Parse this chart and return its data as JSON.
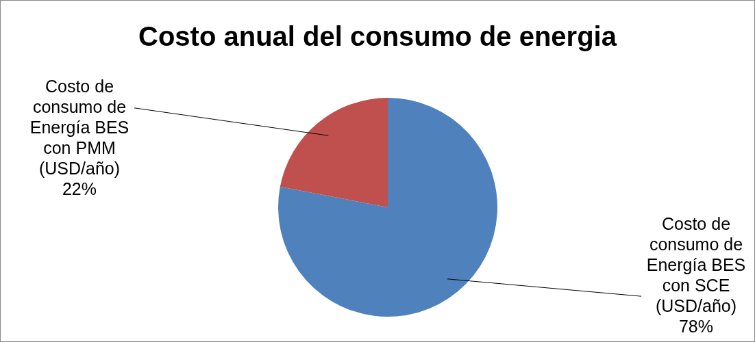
{
  "chart_data": {
    "type": "pie",
    "title": "Costo anual del consumo de energia",
    "categories": [
      "Costo de consumo de Energía BES con SCE (USD/año)",
      "Costo de consumo de Energía BES con PMM (USD/año)"
    ],
    "values": [
      78,
      22
    ],
    "colors": [
      "#4f81bd",
      "#c0504d"
    ],
    "value_labels": [
      "78%",
      "22%"
    ],
    "legend": false
  }
}
